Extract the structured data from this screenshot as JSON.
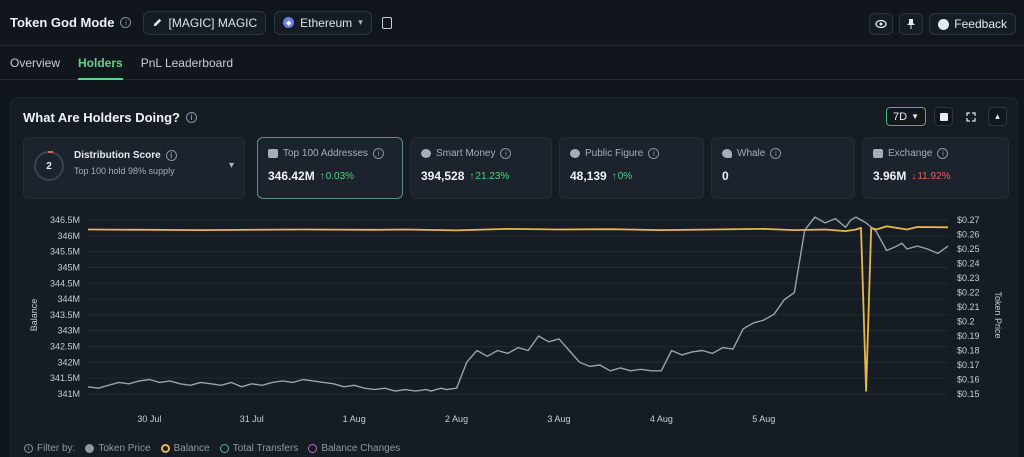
{
  "header": {
    "title": "Token God Mode",
    "token_label": "[MAGIC] MAGIC",
    "chain_label": "Ethereum",
    "feedback_label": "Feedback"
  },
  "tabs": [
    {
      "label": "Overview"
    },
    {
      "label": "Holders"
    },
    {
      "label": "PnL Leaderboard"
    }
  ],
  "panel": {
    "title": "What Are Holders Doing?",
    "range": "7D"
  },
  "cards": {
    "distribution": {
      "label": "Distribution Score",
      "score": "2",
      "subtitle": "Top 100 hold 98% supply"
    },
    "top100": {
      "label": "Top 100 Addresses",
      "value": "346.42M",
      "change": "0.03%"
    },
    "smart_money": {
      "label": "Smart Money",
      "value": "394,528",
      "change": "21.23%"
    },
    "public_figure": {
      "label": "Public Figure",
      "value": "48,139",
      "change": "0%"
    },
    "whale": {
      "label": "Whale",
      "value": "0"
    },
    "exchange": {
      "label": "Exchange",
      "value": "3.96M",
      "change": "11.92%"
    }
  },
  "chart_data": {
    "type": "line",
    "xlabel": "",
    "ylabel": "Balance",
    "y2label": "Token Price",
    "x_ticks": [
      "30 Jul",
      "31 Jul",
      "1 Aug",
      "2 Aug",
      "3 Aug",
      "4 Aug",
      "5 Aug"
    ],
    "y_ticks": [
      "346.5M",
      "346M",
      "345.5M",
      "345M",
      "344.5M",
      "344M",
      "343.5M",
      "343M",
      "342.5M",
      "342M",
      "341.5M",
      "341M"
    ],
    "y2_ticks": [
      "$0.27",
      "$0.26",
      "$0.25",
      "$0.24",
      "$0.23",
      "$0.22",
      "$0.21",
      "$0.2",
      "$0.19",
      "$0.18",
      "$0.17",
      "$0.16",
      "$0.15"
    ],
    "ylim": [
      341,
      346.5
    ],
    "y2lim": [
      0.15,
      0.27
    ],
    "xlim": [
      -0.6,
      7.8
    ],
    "series": [
      {
        "name": "Token Price",
        "color": "#9aa1ab",
        "x": [
          -0.6,
          -0.5,
          -0.4,
          -0.3,
          -0.2,
          -0.1,
          0.0,
          0.1,
          0.2,
          0.3,
          0.4,
          0.5,
          0.6,
          0.7,
          0.8,
          0.9,
          1.0,
          1.1,
          1.2,
          1.3,
          1.4,
          1.5,
          1.6,
          1.7,
          1.8,
          1.9,
          2.0,
          2.1,
          2.2,
          2.3,
          2.4,
          2.5,
          2.6,
          2.7,
          2.75,
          2.8,
          2.85,
          2.9,
          3.0,
          3.1,
          3.2,
          3.3,
          3.4,
          3.5,
          3.6,
          3.7,
          3.8,
          3.9,
          4.0,
          4.1,
          4.2,
          4.3,
          4.4,
          4.5,
          4.6,
          4.7,
          4.8,
          4.9,
          5.0,
          5.1,
          5.2,
          5.3,
          5.4,
          5.5,
          5.6,
          5.7,
          5.8,
          5.9,
          6.0,
          6.1,
          6.2,
          6.3,
          6.4,
          6.5,
          6.6,
          6.7,
          6.8,
          6.85,
          6.9,
          7.0,
          7.1,
          7.2,
          7.3,
          7.35,
          7.4,
          7.5,
          7.6,
          7.7,
          7.8
        ],
        "values": [
          0.155,
          0.154,
          0.156,
          0.158,
          0.157,
          0.159,
          0.16,
          0.158,
          0.159,
          0.157,
          0.156,
          0.158,
          0.157,
          0.156,
          0.158,
          0.155,
          0.157,
          0.156,
          0.158,
          0.159,
          0.158,
          0.16,
          0.159,
          0.158,
          0.157,
          0.155,
          0.156,
          0.154,
          0.153,
          0.154,
          0.152,
          0.153,
          0.152,
          0.153,
          0.152,
          0.153,
          0.154,
          0.153,
          0.154,
          0.172,
          0.18,
          0.176,
          0.18,
          0.178,
          0.182,
          0.18,
          0.19,
          0.186,
          0.188,
          0.18,
          0.172,
          0.169,
          0.17,
          0.166,
          0.168,
          0.166,
          0.167,
          0.166,
          0.166,
          0.18,
          0.177,
          0.179,
          0.18,
          0.178,
          0.182,
          0.181,
          0.195,
          0.199,
          0.201,
          0.205,
          0.215,
          0.22,
          0.263,
          0.272,
          0.268,
          0.271,
          0.265,
          0.27,
          0.272,
          0.268,
          0.262,
          0.249,
          0.252,
          0.254,
          0.25,
          0.252,
          0.25,
          0.247,
          0.252
        ]
      },
      {
        "name": "Balance",
        "color": "#e8b84a",
        "x": [
          -0.6,
          0.5,
          1.5,
          2.2,
          2.5,
          3.0,
          3.5,
          4.0,
          4.5,
          5.0,
          5.5,
          6.0,
          6.3,
          6.6,
          6.8,
          6.9,
          6.95,
          7.0,
          7.05,
          7.1,
          7.15,
          7.2,
          7.3,
          7.4,
          7.5,
          7.8
        ],
        "values": [
          346.2,
          346.18,
          346.2,
          346.19,
          346.2,
          346.17,
          346.22,
          346.2,
          346.21,
          346.18,
          346.2,
          346.22,
          346.18,
          346.2,
          346.15,
          346.2,
          346.25,
          341.1,
          346.25,
          346.2,
          346.25,
          346.3,
          346.25,
          346.2,
          346.28,
          346.27
        ]
      }
    ]
  },
  "legend": {
    "label": "Filter by:",
    "items": [
      {
        "label": "Token Price",
        "color": "#8f97a2"
      },
      {
        "label": "Balance",
        "color": "#e8b84a"
      },
      {
        "label": "Total Transfers",
        "color": "#4fb3b0"
      },
      {
        "label": "Balance Changes",
        "color": "#b070c0"
      }
    ]
  }
}
